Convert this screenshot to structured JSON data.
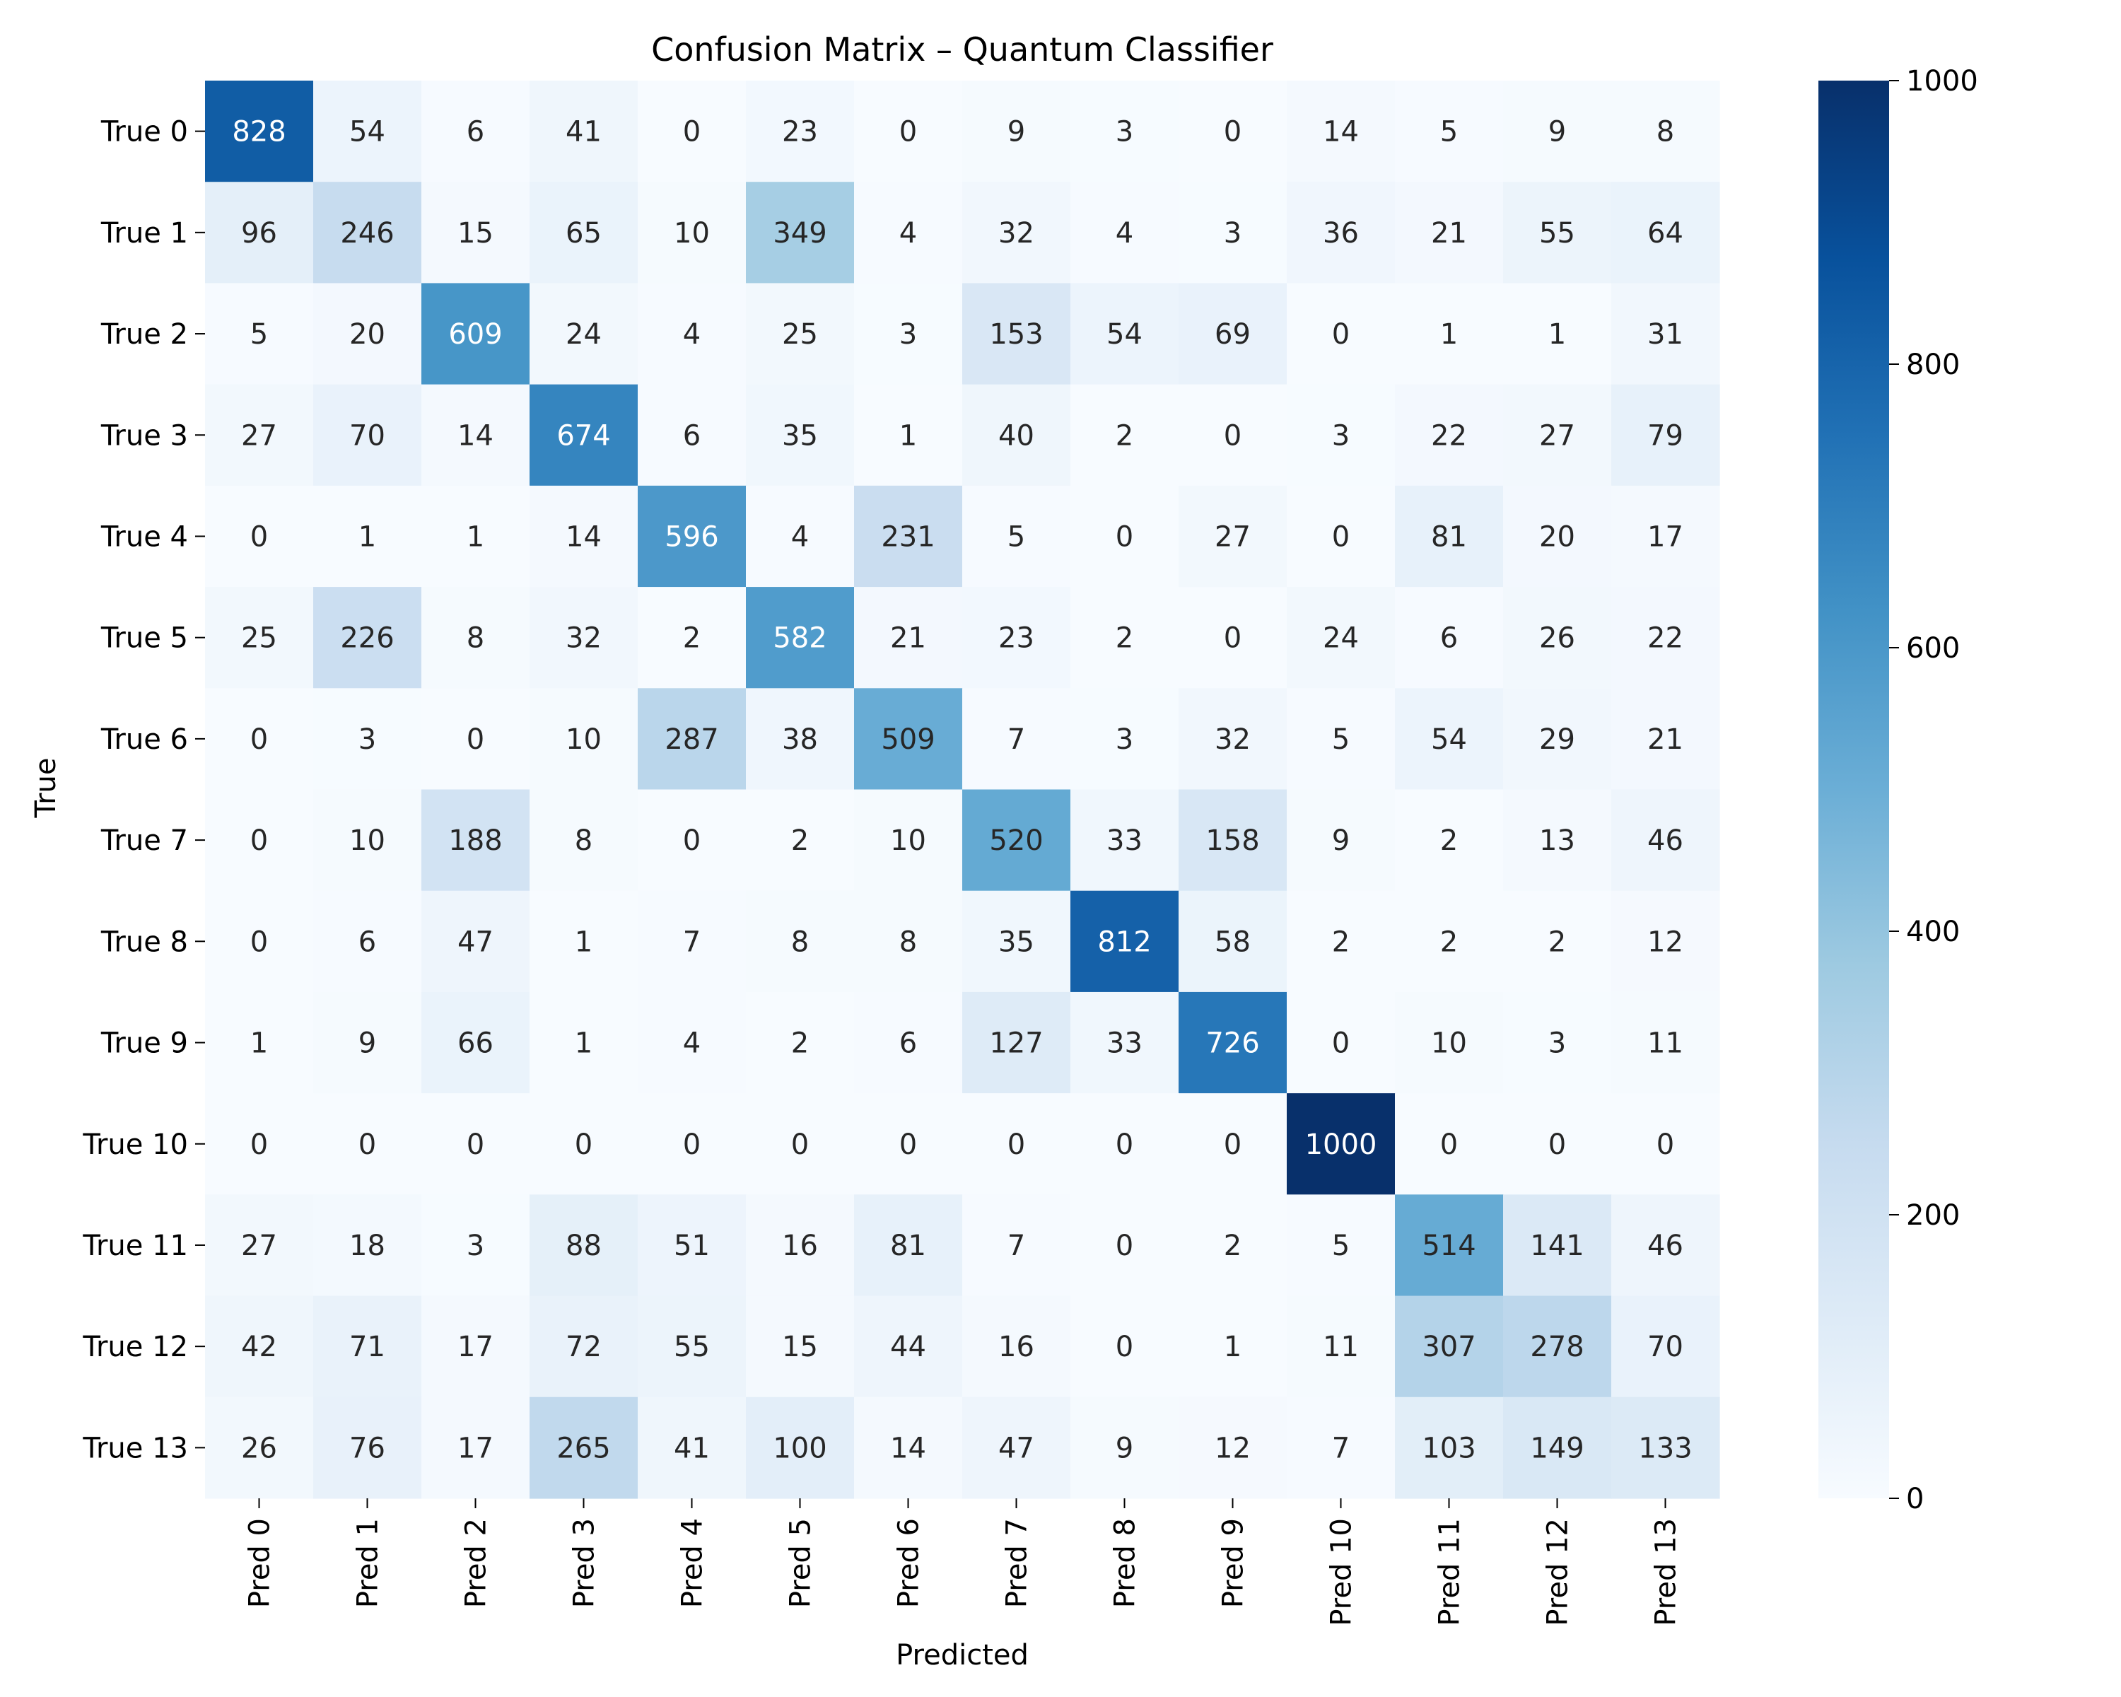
{
  "chart_data": {
    "type": "heatmap",
    "title": "Confusion Matrix – Quantum Classifier",
    "xlabel": "Predicted",
    "ylabel": "True",
    "row_labels": [
      "True 0",
      "True 1",
      "True 2",
      "True 3",
      "True 4",
      "True 5",
      "True 6",
      "True 7",
      "True 8",
      "True 9",
      "True 10",
      "True 11",
      "True 12",
      "True 13"
    ],
    "col_labels": [
      "Pred 0",
      "Pred 1",
      "Pred 2",
      "Pred 3",
      "Pred 4",
      "Pred 5",
      "Pred 6",
      "Pred 7",
      "Pred 8",
      "Pred 9",
      "Pred 10",
      "Pred 11",
      "Pred 12",
      "Pred 13"
    ],
    "values": [
      [
        828,
        54,
        6,
        41,
        0,
        23,
        0,
        9,
        3,
        0,
        14,
        5,
        9,
        8
      ],
      [
        96,
        246,
        15,
        65,
        10,
        349,
        4,
        32,
        4,
        3,
        36,
        21,
        55,
        64
      ],
      [
        5,
        20,
        609,
        24,
        4,
        25,
        3,
        153,
        54,
        69,
        0,
        1,
        1,
        31
      ],
      [
        27,
        70,
        14,
        674,
        6,
        35,
        1,
        40,
        2,
        0,
        3,
        22,
        27,
        79
      ],
      [
        0,
        1,
        1,
        14,
        596,
        4,
        231,
        5,
        0,
        27,
        0,
        81,
        20,
        17
      ],
      [
        25,
        226,
        8,
        32,
        2,
        582,
        21,
        23,
        2,
        0,
        24,
        6,
        26,
        22
      ],
      [
        0,
        3,
        0,
        10,
        287,
        38,
        509,
        7,
        3,
        32,
        5,
        54,
        29,
        21
      ],
      [
        0,
        10,
        188,
        8,
        0,
        2,
        10,
        520,
        33,
        158,
        9,
        2,
        13,
        46
      ],
      [
        0,
        6,
        47,
        1,
        7,
        8,
        8,
        35,
        812,
        58,
        2,
        2,
        2,
        12
      ],
      [
        1,
        9,
        66,
        1,
        4,
        2,
        6,
        127,
        33,
        726,
        0,
        10,
        3,
        11
      ],
      [
        0,
        0,
        0,
        0,
        0,
        0,
        0,
        0,
        0,
        0,
        1000,
        0,
        0,
        0
      ],
      [
        27,
        18,
        3,
        88,
        51,
        16,
        81,
        7,
        0,
        2,
        5,
        514,
        141,
        46
      ],
      [
        42,
        71,
        17,
        72,
        55,
        15,
        44,
        16,
        0,
        1,
        11,
        307,
        278,
        70
      ],
      [
        26,
        76,
        17,
        265,
        41,
        100,
        14,
        47,
        9,
        12,
        7,
        103,
        149,
        133
      ]
    ],
    "colormap": "Blues",
    "colormap_stops": [
      "#f7fbff",
      "#deebf7",
      "#c6dbef",
      "#9ecae1",
      "#6baed6",
      "#4292c6",
      "#2171b5",
      "#08519c",
      "#08306b"
    ],
    "vmin": 0,
    "vmax": 1000,
    "colorbar_ticks": [
      "0",
      "200",
      "400",
      "600",
      "800",
      "1000"
    ],
    "colorbar_tick_values": [
      0,
      200,
      400,
      600,
      800,
      1000
    ],
    "grid": false
  }
}
